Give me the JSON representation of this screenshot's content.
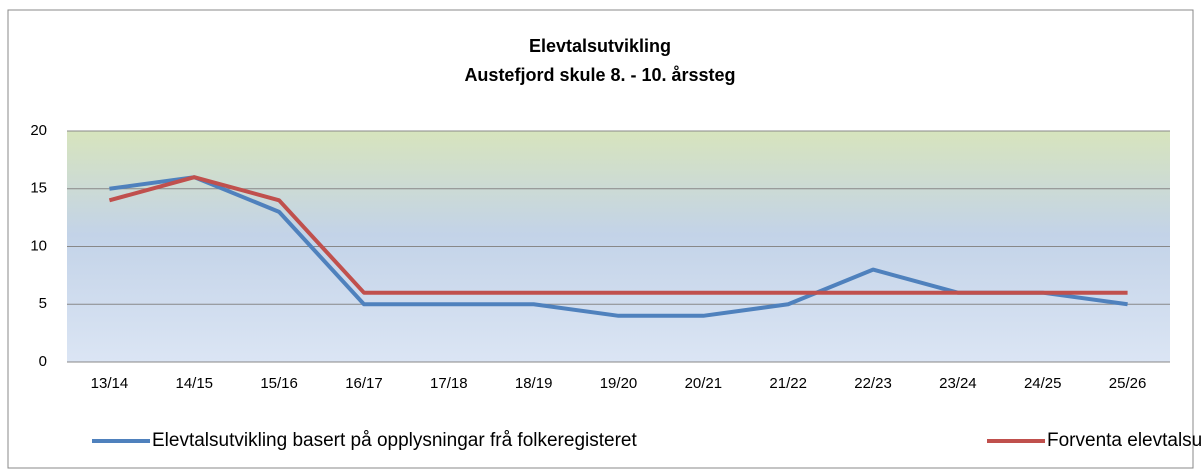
{
  "chart_data": {
    "type": "line",
    "title": "Elevtalsutvikling",
    "subtitle": "Austefjord skule 8. - 10. årssteg",
    "categories": [
      "13/14",
      "14/15",
      "15/16",
      "16/17",
      "17/18",
      "18/19",
      "19/20",
      "20/21",
      "21/22",
      "22/23",
      "23/24",
      "24/25",
      "25/26"
    ],
    "series": [
      {
        "name": "Elevtalsutvikling basert på opplysningar frå folkeregisteret",
        "color": "#4f81bd",
        "values": [
          15,
          16,
          13,
          5,
          5,
          5,
          4,
          4,
          5,
          8,
          6,
          6,
          5
        ]
      },
      {
        "name": "Forventa elevtalsutvikling",
        "color": "#c0504d",
        "values": [
          14,
          16,
          14,
          6,
          6,
          6,
          6,
          6,
          6,
          6,
          6,
          6,
          6
        ]
      }
    ],
    "ylim": [
      0,
      20
    ],
    "yticks": [
      0,
      5,
      10,
      15,
      20
    ],
    "grid": true,
    "legend": "bottom"
  }
}
